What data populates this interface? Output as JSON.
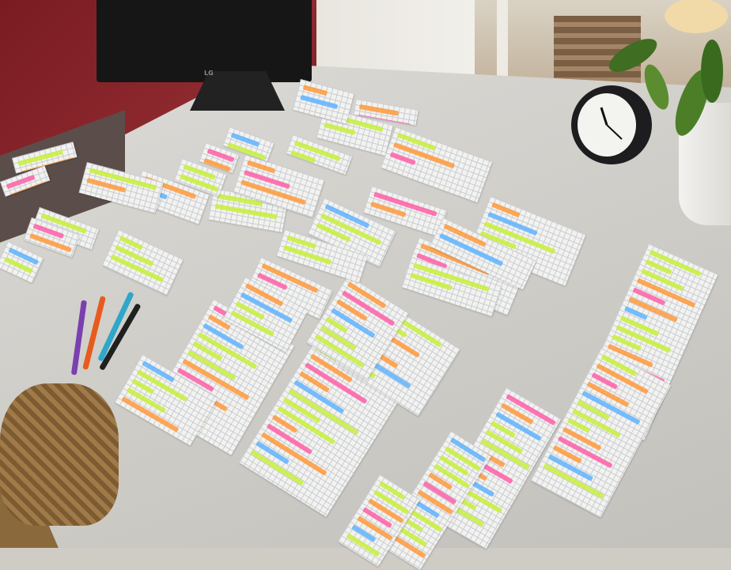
{
  "monitor": {
    "logo": "LG"
  },
  "colors": {
    "wall": "#7a1b22",
    "desk": "#d4d2ce",
    "card": "#f2f2ef",
    "highlight_green": "#c8f03c",
    "highlight_orange": "#ff9a3c",
    "highlight_pink": "#ff5fa8",
    "highlight_blue": "#5fb4ff",
    "pen_colors": [
      "#7b3fb0",
      "#e85a1e",
      "#2ea7c9",
      "#202020"
    ]
  }
}
